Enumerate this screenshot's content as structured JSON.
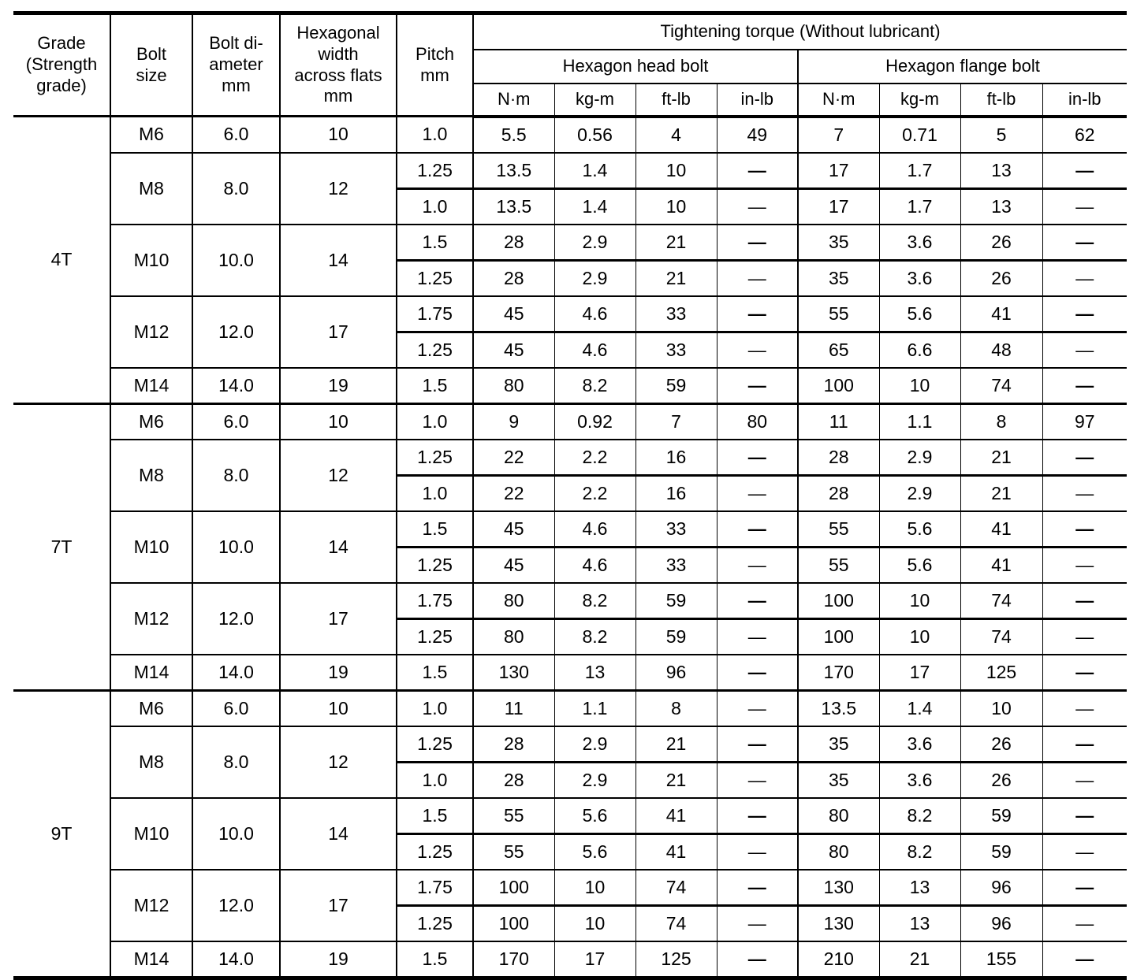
{
  "colors": {
    "text": "#000000",
    "background": "#ffffff",
    "border": "#000000"
  },
  "header": {
    "grade": "Grade\n(Strength\ngrade)",
    "bolt_size": "Bolt\nsize",
    "bolt_diameter": "Bolt di-\nameter\nmm",
    "hex_width": "Hexagonal\nwidth\nacross flats\nmm",
    "pitch": "Pitch\nmm",
    "torque_title": "Tightening torque (Without lubricant)",
    "head_bolt": "Hexagon head bolt",
    "flange_bolt": "Hexagon flange bolt",
    "units_head": [
      "N·m",
      "kg-m",
      "ft-lb",
      "in-lb"
    ],
    "units_flange": [
      "N·m",
      "kg-m",
      "ft-lb",
      "in-lb"
    ]
  },
  "grades": [
    {
      "name": "4T",
      "bolts": [
        {
          "size": "M6",
          "diameter": "6.0",
          "hex": "10",
          "rows": [
            {
              "pitch": "1.0",
              "vals": [
                "5.5",
                "0.56",
                "4",
                "49",
                "7",
                "0.71",
                "5",
                "62"
              ],
              "boldDash": false
            }
          ]
        },
        {
          "size": "M8",
          "diameter": "8.0",
          "hex": "12",
          "rows": [
            {
              "pitch": "1.25",
              "vals": [
                "13.5",
                "1.4",
                "10",
                "—",
                "17",
                "1.7",
                "13",
                "—"
              ],
              "boldDash": true
            },
            {
              "pitch": "1.0",
              "vals": [
                "13.5",
                "1.4",
                "10",
                "—",
                "17",
                "1.7",
                "13",
                "—"
              ],
              "boldDash": false
            }
          ]
        },
        {
          "size": "M10",
          "diameter": "10.0",
          "hex": "14",
          "rows": [
            {
              "pitch": "1.5",
              "vals": [
                "28",
                "2.9",
                "21",
                "—",
                "35",
                "3.6",
                "26",
                "—"
              ],
              "boldDash": true
            },
            {
              "pitch": "1.25",
              "vals": [
                "28",
                "2.9",
                "21",
                "—",
                "35",
                "3.6",
                "26",
                "—"
              ],
              "boldDash": false
            }
          ]
        },
        {
          "size": "M12",
          "diameter": "12.0",
          "hex": "17",
          "rows": [
            {
              "pitch": "1.75",
              "vals": [
                "45",
                "4.6",
                "33",
                "—",
                "55",
                "5.6",
                "41",
                "—"
              ],
              "boldDash": true
            },
            {
              "pitch": "1.25",
              "vals": [
                "45",
                "4.6",
                "33",
                "—",
                "65",
                "6.6",
                "48",
                "—"
              ],
              "boldDash": false
            }
          ]
        },
        {
          "size": "M14",
          "diameter": "14.0",
          "hex": "19",
          "rows": [
            {
              "pitch": "1.5",
              "vals": [
                "80",
                "8.2",
                "59",
                "—",
                "100",
                "10",
                "74",
                "—"
              ],
              "boldDash": true
            }
          ]
        }
      ]
    },
    {
      "name": "7T",
      "bolts": [
        {
          "size": "M6",
          "diameter": "6.0",
          "hex": "10",
          "rows": [
            {
              "pitch": "1.0",
              "vals": [
                "9",
                "0.92",
                "7",
                "80",
                "11",
                "1.1",
                "8",
                "97"
              ],
              "boldDash": false
            }
          ]
        },
        {
          "size": "M8",
          "diameter": "8.0",
          "hex": "12",
          "rows": [
            {
              "pitch": "1.25",
              "vals": [
                "22",
                "2.2",
                "16",
                "—",
                "28",
                "2.9",
                "21",
                "—"
              ],
              "boldDash": true
            },
            {
              "pitch": "1.0",
              "vals": [
                "22",
                "2.2",
                "16",
                "—",
                "28",
                "2.9",
                "21",
                "—"
              ],
              "boldDash": false
            }
          ]
        },
        {
          "size": "M10",
          "diameter": "10.0",
          "hex": "14",
          "rows": [
            {
              "pitch": "1.5",
              "vals": [
                "45",
                "4.6",
                "33",
                "—",
                "55",
                "5.6",
                "41",
                "—"
              ],
              "boldDash": true
            },
            {
              "pitch": "1.25",
              "vals": [
                "45",
                "4.6",
                "33",
                "—",
                "55",
                "5.6",
                "41",
                "—"
              ],
              "boldDash": false
            }
          ]
        },
        {
          "size": "M12",
          "diameter": "12.0",
          "hex": "17",
          "rows": [
            {
              "pitch": "1.75",
              "vals": [
                "80",
                "8.2",
                "59",
                "—",
                "100",
                "10",
                "74",
                "—"
              ],
              "boldDash": true
            },
            {
              "pitch": "1.25",
              "vals": [
                "80",
                "8.2",
                "59",
                "—",
                "100",
                "10",
                "74",
                "—"
              ],
              "boldDash": false
            }
          ]
        },
        {
          "size": "M14",
          "diameter": "14.0",
          "hex": "19",
          "rows": [
            {
              "pitch": "1.5",
              "vals": [
                "130",
                "13",
                "96",
                "—",
                "170",
                "17",
                "125",
                "—"
              ],
              "boldDash": true
            }
          ]
        }
      ]
    },
    {
      "name": "9T",
      "bolts": [
        {
          "size": "M6",
          "diameter": "6.0",
          "hex": "10",
          "rows": [
            {
              "pitch": "1.0",
              "vals": [
                "11",
                "1.1",
                "8",
                "—",
                "13.5",
                "1.4",
                "10",
                "—"
              ],
              "boldDash": false
            }
          ]
        },
        {
          "size": "M8",
          "diameter": "8.0",
          "hex": "12",
          "rows": [
            {
              "pitch": "1.25",
              "vals": [
                "28",
                "2.9",
                "21",
                "—",
                "35",
                "3.6",
                "26",
                "—"
              ],
              "boldDash": true
            },
            {
              "pitch": "1.0",
              "vals": [
                "28",
                "2.9",
                "21",
                "—",
                "35",
                "3.6",
                "26",
                "—"
              ],
              "boldDash": false
            }
          ]
        },
        {
          "size": "M10",
          "diameter": "10.0",
          "hex": "14",
          "rows": [
            {
              "pitch": "1.5",
              "vals": [
                "55",
                "5.6",
                "41",
                "—",
                "80",
                "8.2",
                "59",
                "—"
              ],
              "boldDash": true
            },
            {
              "pitch": "1.25",
              "vals": [
                "55",
                "5.6",
                "41",
                "—",
                "80",
                "8.2",
                "59",
                "—"
              ],
              "boldDash": false
            }
          ]
        },
        {
          "size": "M12",
          "diameter": "12.0",
          "hex": "17",
          "rows": [
            {
              "pitch": "1.75",
              "vals": [
                "100",
                "10",
                "74",
                "—",
                "130",
                "13",
                "96",
                "—"
              ],
              "boldDash": true
            },
            {
              "pitch": "1.25",
              "vals": [
                "100",
                "10",
                "74",
                "—",
                "130",
                "13",
                "96",
                "—"
              ],
              "boldDash": false
            }
          ]
        },
        {
          "size": "M14",
          "diameter": "14.0",
          "hex": "19",
          "rows": [
            {
              "pitch": "1.5",
              "vals": [
                "170",
                "17",
                "125",
                "—",
                "210",
                "21",
                "155",
                "—"
              ],
              "boldDash": true
            }
          ]
        }
      ]
    }
  ]
}
